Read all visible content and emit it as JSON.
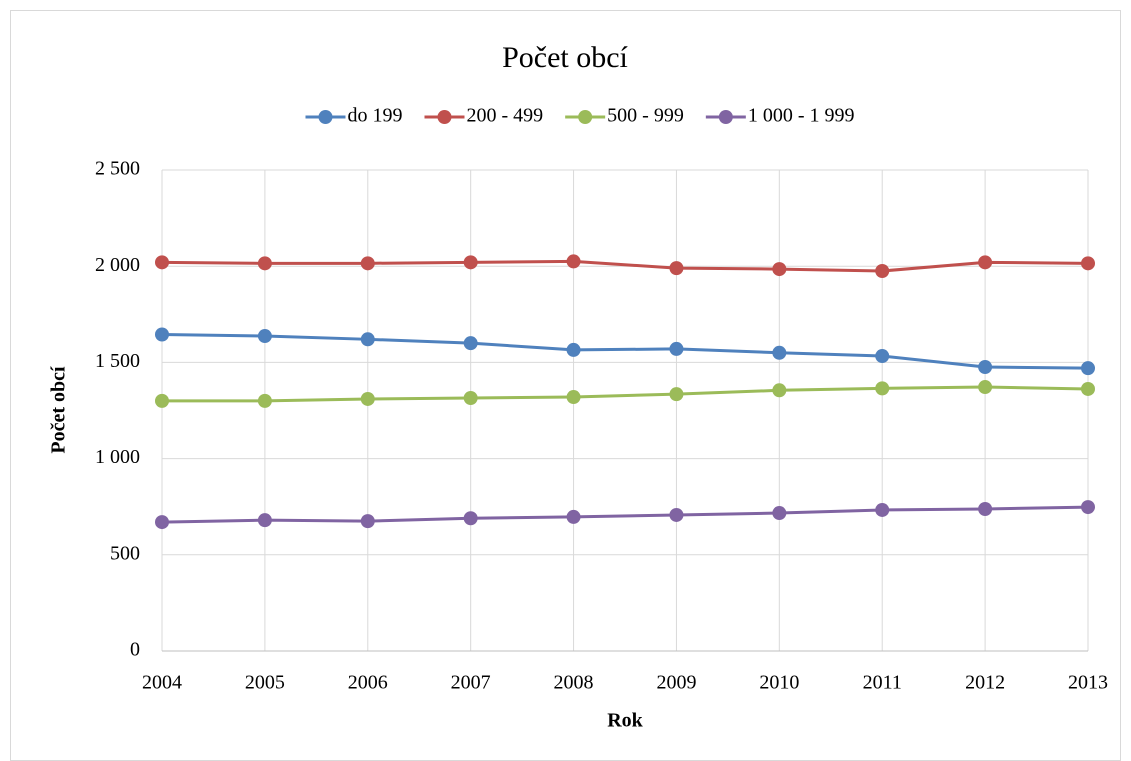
{
  "chart_data": {
    "type": "line",
    "title": "Počet obcí",
    "x_label": "Rok",
    "y_label": "Počet obcí",
    "x": [
      2004,
      2005,
      2006,
      2007,
      2008,
      2009,
      2010,
      2011,
      2012,
      2013
    ],
    "series": [
      {
        "name": "do 199",
        "color": "#4f81bd",
        "values": [
          1645,
          1637,
          1620,
          1600,
          1565,
          1570,
          1550,
          1533,
          1476,
          1470
        ]
      },
      {
        "name": "200 - 499",
        "color": "#c0504d",
        "values": [
          2020,
          2015,
          2015,
          2020,
          2025,
          1990,
          1985,
          1975,
          2020,
          2015
        ]
      },
      {
        "name": "500 - 999",
        "color": "#9bbb59",
        "values": [
          1300,
          1300,
          1310,
          1315,
          1320,
          1335,
          1355,
          1365,
          1372,
          1362
        ]
      },
      {
        "name": "1 000 - 1 999",
        "color": "#8064a2",
        "values": [
          670,
          680,
          675,
          690,
          697,
          707,
          717,
          733,
          738,
          748
        ]
      }
    ],
    "xlim": [
      2004,
      2013
    ],
    "xticks": [
      2004,
      2005,
      2006,
      2007,
      2008,
      2009,
      2010,
      2011,
      2012,
      2013
    ],
    "ylim": [
      0,
      2500
    ],
    "yticks": [
      0,
      500,
      {
        "value": 1000,
        "label": "1 000"
      },
      {
        "value": 1500,
        "label": "1 500"
      },
      {
        "value": 2000,
        "label": "2 000"
      },
      {
        "value": 2500,
        "label": "2 500"
      }
    ],
    "grid": true,
    "legend": "top"
  }
}
